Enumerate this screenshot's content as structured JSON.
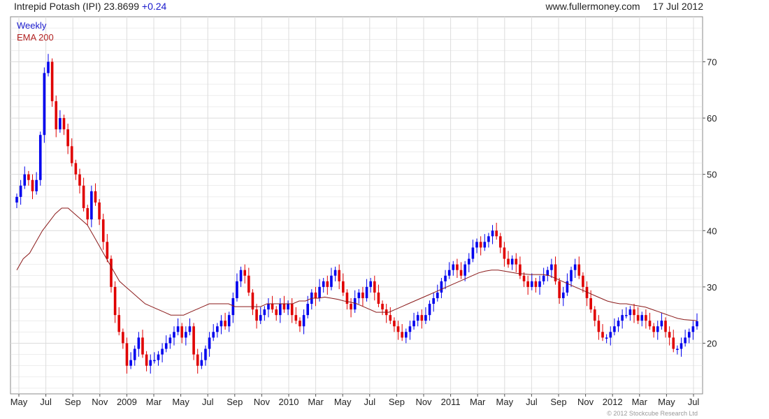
{
  "header": {
    "title": "Intrepid Potash (IPI) 23.8699",
    "change": "+0.24",
    "website": "www.fullermoney.com",
    "date": "17 Jul 2012"
  },
  "legend": {
    "weekly": "Weekly",
    "ema": "EMA 200"
  },
  "copyright": "© 2012 Stockcube Research Ltd",
  "colors": {
    "up": "#0000ee",
    "down": "#e00000",
    "ema": "#8b1a1a",
    "grid": "#dcdcdc"
  },
  "chart_data": {
    "type": "candlestick",
    "frequency": "weekly",
    "ylim": [
      11,
      78
    ],
    "y_ticks": [
      20,
      30,
      40,
      50,
      60,
      70
    ],
    "y_axis_side": "right",
    "grid": true,
    "x_labels": [
      "May",
      "Jul",
      "Sep",
      "Nov",
      "2009",
      "Mar",
      "May",
      "Jul",
      "Sep",
      "Nov",
      "2010",
      "Mar",
      "May",
      "Jul",
      "Sep",
      "Nov",
      "2011",
      "Mar",
      "May",
      "Jul",
      "Sep",
      "Nov",
      "2012",
      "Mar",
      "May",
      "Jul"
    ],
    "series": [
      {
        "name": "Weekly",
        "kind": "close",
        "values": [
          46,
          48,
          50,
          49,
          47,
          49,
          57,
          68,
          70,
          63,
          58,
          60,
          58,
          55,
          52,
          50,
          48,
          44,
          42,
          47,
          45,
          42,
          38,
          35,
          30,
          25,
          22,
          20,
          16,
          17,
          19,
          21,
          18,
          16,
          17,
          17,
          18,
          19,
          20,
          21,
          22,
          23,
          21,
          22,
          23,
          18,
          16,
          17,
          19,
          21,
          22,
          23,
          24,
          23,
          25,
          28,
          31,
          33,
          32,
          29,
          26,
          24,
          25,
          26,
          27,
          26,
          25,
          27,
          26,
          27,
          25,
          24,
          23,
          25,
          27,
          29,
          28,
          30,
          31,
          30,
          32,
          33,
          31,
          29,
          27,
          26,
          28,
          29,
          28,
          30,
          31,
          29,
          27,
          26,
          25,
          24,
          23,
          22,
          21,
          22,
          23,
          24,
          25,
          24,
          25,
          27,
          28,
          29,
          31,
          32,
          33,
          34,
          33,
          32,
          34,
          35,
          37,
          38,
          37,
          38,
          39,
          40,
          39,
          37,
          35,
          34,
          35,
          34,
          32,
          31,
          30,
          31,
          30,
          31,
          32,
          33,
          34,
          31,
          28,
          29,
          31,
          33,
          34,
          32,
          30,
          28,
          26,
          24,
          22,
          21,
          21,
          22,
          23,
          24,
          25,
          25,
          26,
          25,
          24,
          25,
          24,
          23,
          22,
          23,
          24,
          22,
          21,
          19,
          19,
          20,
          21,
          22,
          23,
          23.9
        ]
      },
      {
        "name": "EMA 200",
        "kind": "line",
        "values": [
          33,
          35,
          36,
          38,
          40,
          41.5,
          43,
          44,
          44,
          43,
          42,
          41,
          39,
          37,
          35,
          33,
          31,
          30,
          29,
          28,
          27,
          26.5,
          26,
          25.5,
          25,
          25,
          25,
          25.5,
          26,
          26.5,
          27,
          27,
          27,
          27,
          26.5,
          26.5,
          26.5,
          26.5,
          26.5,
          27,
          27,
          27,
          27,
          27,
          27.5,
          27.5,
          28,
          28,
          28.2,
          28,
          27.8,
          27.5,
          27.3,
          27,
          26.5,
          26,
          25.5,
          25.5,
          25.5,
          26,
          26.5,
          27,
          27.5,
          28,
          28.5,
          29,
          29.5,
          30,
          30.5,
          31,
          31.5,
          32,
          32.5,
          32.8,
          33,
          33,
          32.8,
          32.6,
          32.4,
          32.3,
          32.2,
          32.2,
          32.2,
          32,
          31.5,
          31,
          30.5,
          30,
          29.5,
          29,
          28.5,
          28,
          27.5,
          27.2,
          27,
          27,
          26.8,
          26.6,
          26.4,
          26,
          25.6,
          25.2,
          24.8,
          24.4,
          24.2,
          24.1,
          24
        ]
      }
    ]
  }
}
